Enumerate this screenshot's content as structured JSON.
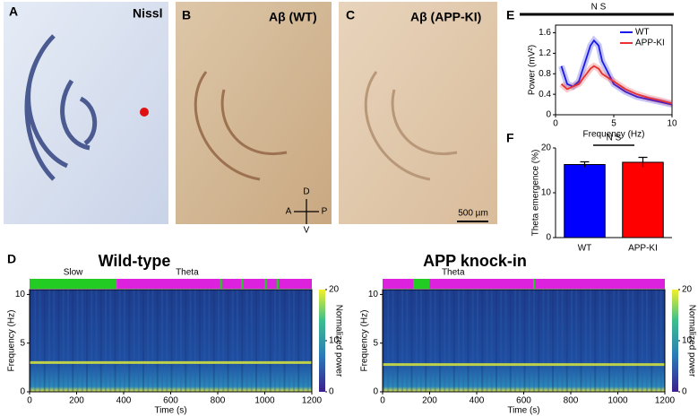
{
  "panel_labels": {
    "A": "A",
    "B": "B",
    "C": "C",
    "D": "D",
    "E": "E",
    "F": "F"
  },
  "images": {
    "A": {
      "stain": "Nissl"
    },
    "B": {
      "stain": "Aβ (WT)"
    },
    "C": {
      "stain": "Aβ (APP-KI)"
    }
  },
  "orientation": {
    "dorsal": "D",
    "ventral": "V",
    "anterior": "A",
    "posterior": "P"
  },
  "scale_bar": "500 µm",
  "chart_data": [
    {
      "type": "line",
      "annotation": "N S",
      "x_label": "Frequency (Hz)",
      "y_label": "Power (mV²)",
      "x": [
        0.5,
        1,
        1.5,
        2,
        2.5,
        3,
        3.3,
        3.7,
        4,
        5,
        6,
        7,
        8,
        9,
        10
      ],
      "series": [
        {
          "name": "WT",
          "color": "#1a1ae6",
          "values": [
            0.95,
            0.6,
            0.55,
            0.65,
            1.0,
            1.35,
            1.45,
            1.35,
            1.05,
            0.6,
            0.45,
            0.35,
            0.3,
            0.25,
            0.2
          ]
        },
        {
          "name": "APP-KI",
          "color": "#e63232",
          "values": [
            0.6,
            0.5,
            0.55,
            0.6,
            0.75,
            0.9,
            0.95,
            0.9,
            0.8,
            0.65,
            0.5,
            0.4,
            0.33,
            0.28,
            0.22
          ]
        }
      ],
      "xlim": [
        0,
        10
      ],
      "ylim": [
        0,
        1.75
      ],
      "xticks": [
        0,
        5,
        10
      ],
      "yticks": [
        0,
        0.4,
        0.8,
        1.2,
        1.6
      ]
    },
    {
      "type": "bar",
      "annotation": "N S",
      "y_label": "Theta emergence (%)",
      "categories": [
        "WT",
        "APP-KI"
      ],
      "values": [
        16.3,
        16.8
      ],
      "errors": [
        0.6,
        1.1
      ],
      "colors": [
        "#0000ff",
        "#ff0000"
      ],
      "ylim": [
        0,
        20
      ],
      "yticks": [
        0,
        10,
        20
      ]
    },
    {
      "type": "spectrogram",
      "title": "Wild-type",
      "x_label": "Time (s)",
      "y_label": "Frequency (Hz)",
      "states": [
        {
          "start": 0,
          "end": 370,
          "color": "#22cc22"
        },
        {
          "start": 370,
          "end": 1200,
          "color": "#dd22dd"
        },
        {
          "start": 810,
          "end": 820,
          "color": "#22cc22"
        },
        {
          "start": 900,
          "end": 910,
          "color": "#22cc22"
        },
        {
          "start": 1000,
          "end": 1010,
          "color": "#22cc22"
        },
        {
          "start": 1050,
          "end": 1060,
          "color": "#22cc22"
        }
      ],
      "state_labels": [
        {
          "text": "Slow",
          "color": "#22cc22"
        },
        {
          "text": "Theta",
          "color": "#dd22dd"
        }
      ],
      "peak_frequency": 3,
      "xlim": [
        0,
        1200
      ],
      "ylim": [
        0,
        10.5
      ],
      "xticks": [
        0,
        200,
        400,
        600,
        800,
        1000,
        1200
      ],
      "yticks": [
        0,
        5,
        10
      ],
      "colorbar": {
        "label": "Normalized power",
        "lim": [
          0,
          20
        ],
        "ticks": [
          0,
          10,
          20
        ]
      }
    },
    {
      "type": "spectrogram",
      "title": "APP knock-in",
      "x_label": "Time (s)",
      "y_label": "Frequency (Hz)",
      "states": [
        {
          "start": 0,
          "end": 1200,
          "color": "#dd22dd"
        },
        {
          "start": 130,
          "end": 200,
          "color": "#22cc22"
        },
        {
          "start": 640,
          "end": 650,
          "color": "#22cc22"
        }
      ],
      "state_labels": [
        {
          "text": "Theta",
          "color": "#dd22dd"
        }
      ],
      "peak_frequency": 2.8,
      "xlim": [
        0,
        1200
      ],
      "ylim": [
        0,
        10.5
      ],
      "xticks": [
        0,
        200,
        400,
        600,
        800,
        1000,
        1200
      ],
      "yticks": [
        0,
        5,
        10
      ],
      "colorbar": {
        "label": "Normalized power",
        "lim": [
          0,
          20
        ],
        "ticks": [
          0,
          10,
          20
        ]
      }
    }
  ]
}
